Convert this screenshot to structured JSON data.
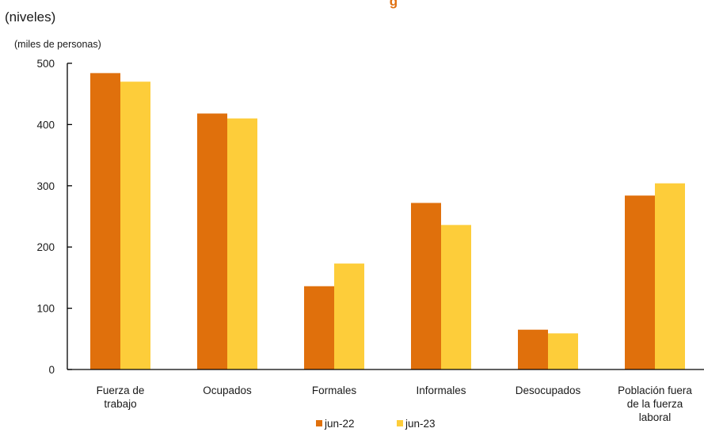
{
  "chart_data": {
    "type": "bar",
    "title_fragment": "g",
    "subtitle": "(niveles)",
    "unit_label": "(miles de personas)",
    "ylim": [
      0,
      500
    ],
    "yticks": [
      0,
      100,
      200,
      300,
      400,
      500
    ],
    "grid": false,
    "legend_position": "bottom",
    "categories": [
      [
        "Fuerza de",
        "trabajo"
      ],
      [
        "Ocupados"
      ],
      [
        "Formales"
      ],
      [
        "Informales"
      ],
      [
        "Desocupados"
      ],
      [
        "Población fuera",
        "de la fuerza",
        "laboral"
      ]
    ],
    "series": [
      {
        "name": "jun-22",
        "color": "#e0700c",
        "values": [
          484,
          418,
          136,
          272,
          65,
          284
        ]
      },
      {
        "name": "jun-23",
        "color": "#fdcd3a",
        "values": [
          470,
          410,
          173,
          236,
          59,
          304
        ]
      }
    ]
  }
}
